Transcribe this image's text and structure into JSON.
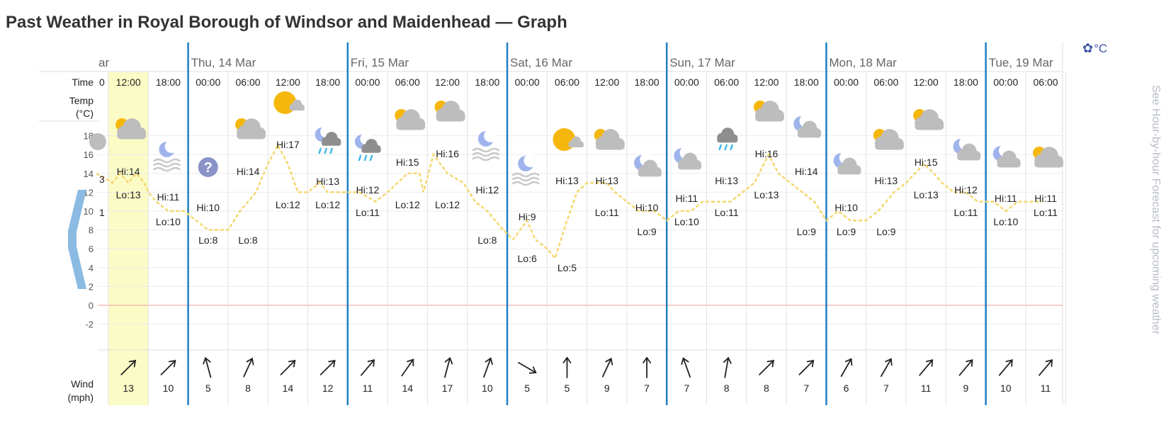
{
  "page": {
    "title": "Past Weather in Royal Borough of Windsor and Maidenhead — Graph",
    "units_label": "°C",
    "side_link": "See Hour-by-hour Forecast for upcoming weather",
    "icons": {
      "settings": "gear-icon",
      "back": "chevron-left-icon"
    },
    "colors": {
      "selected_column": "#fbfbc6",
      "day_divider": "#1f7fc4",
      "temp_line": "#f5d76e",
      "zero_line": "#f29b9b",
      "back_arrow": "#8bbbe2",
      "units": "#3d55a5"
    }
  },
  "row_labels": {
    "time": "Time",
    "temp": "Temp",
    "temp_unit": "(°C)",
    "wind": "Wind",
    "wind_unit": "(mph)"
  },
  "chart_data": {
    "type": "line",
    "partial_day_label": "ar",
    "days": [
      "Thu, 14 Mar",
      "Fri, 15 Mar",
      "Sat, 16 Mar",
      "Sun, 17 Mar",
      "Mon, 18 Mar",
      "Tue, 19 Mar"
    ],
    "partial_first_time": "0",
    "times": [
      "12:00",
      "18:00",
      "00:00",
      "06:00",
      "12:00",
      "18:00",
      "00:00",
      "06:00",
      "12:00",
      "18:00",
      "00:00",
      "06:00",
      "12:00",
      "18:00",
      "00:00",
      "06:00",
      "12:00",
      "18:00",
      "00:00",
      "06:00",
      "12:00",
      "18:00",
      "00:00",
      "06:00"
    ],
    "selected_time": "12:00",
    "y_ticks": [
      18,
      16,
      14,
      12,
      10,
      8,
      6,
      4,
      2,
      0,
      -2
    ],
    "ylim": [
      -2,
      18
    ],
    "partial_labels": {
      "hi": "3",
      "lo": "1"
    },
    "highs": [
      "Hi:14",
      "Hi:11",
      "Hi:10",
      "Hi:14",
      "Hi:17",
      "Hi:13",
      "Hi:12",
      "Hi:15",
      "Hi:16",
      "Hi:12",
      "Hi:9",
      "Hi:13",
      "Hi:13",
      "Hi:10",
      "Hi:11",
      "Hi:13",
      "Hi:16",
      "Hi:14",
      "Hi:10",
      "Hi:13",
      "Hi:15",
      "Hi:12",
      "Hi:11",
      "Hi:11"
    ],
    "lows": [
      "Lo:13",
      "Lo:10",
      "Lo:8",
      "Lo:8",
      "Lo:12",
      "Lo:12",
      "Lo:11",
      "Lo:12",
      "Lo:12",
      "Lo:8",
      "Lo:6",
      "Lo:5",
      "Lo:11",
      "Lo:9",
      "Lo:10",
      "Lo:11",
      "Lo:13",
      "Lo:9",
      "Lo:9",
      "Lo:9",
      "Lo:13",
      "Lo:11",
      "Lo:10",
      "Lo:11"
    ],
    "temp_line": [
      [
        -0.3,
        14
      ],
      [
        0.1,
        13
      ],
      [
        0.3,
        14
      ],
      [
        0.5,
        13
      ],
      [
        0.7,
        14
      ],
      [
        0.9,
        13
      ],
      [
        1,
        12
      ],
      [
        1.2,
        11
      ],
      [
        1.5,
        10
      ],
      [
        1.9,
        10
      ],
      [
        2.2,
        9
      ],
      [
        2.5,
        8
      ],
      [
        3,
        8
      ],
      [
        3.3,
        10
      ],
      [
        3.7,
        12
      ],
      [
        4,
        15
      ],
      [
        4.25,
        17
      ],
      [
        4.5,
        15
      ],
      [
        4.75,
        12
      ],
      [
        5,
        12
      ],
      [
        5.3,
        13
      ],
      [
        5.5,
        12
      ],
      [
        5.8,
        12
      ],
      [
        6,
        12
      ],
      [
        6.3,
        12
      ],
      [
        6.7,
        11
      ],
      [
        7,
        12
      ],
      [
        7.25,
        13
      ],
      [
        7.5,
        14
      ],
      [
        7.8,
        14
      ],
      [
        7.9,
        12
      ],
      [
        8.15,
        16
      ],
      [
        8.5,
        14
      ],
      [
        8.9,
        13
      ],
      [
        9.2,
        11
      ],
      [
        9.5,
        10
      ],
      [
        9.9,
        8
      ],
      [
        10.15,
        7
      ],
      [
        10.5,
        9
      ],
      [
        10.7,
        7
      ],
      [
        11,
        6
      ],
      [
        11.2,
        5
      ],
      [
        11.5,
        9
      ],
      [
        11.75,
        12
      ],
      [
        12,
        13
      ],
      [
        12.5,
        13
      ],
      [
        12.7,
        12
      ],
      [
        13,
        11
      ],
      [
        13.3,
        10
      ],
      [
        13.7,
        10
      ],
      [
        14,
        9
      ],
      [
        14.3,
        10
      ],
      [
        14.6,
        10
      ],
      [
        14.9,
        11
      ],
      [
        15.2,
        11
      ],
      [
        15.6,
        11
      ],
      [
        15.9,
        12
      ],
      [
        16.2,
        13
      ],
      [
        16.55,
        16
      ],
      [
        16.8,
        14
      ],
      [
        17.1,
        13
      ],
      [
        17.4,
        12
      ],
      [
        17.7,
        11
      ],
      [
        18,
        9
      ],
      [
        18.3,
        10
      ],
      [
        18.6,
        9
      ],
      [
        19,
        9
      ],
      [
        19.3,
        10
      ],
      [
        19.7,
        12
      ],
      [
        20,
        13
      ],
      [
        20.45,
        15
      ],
      [
        20.7,
        14
      ],
      [
        20.9,
        13
      ],
      [
        21.2,
        12
      ],
      [
        21.5,
        12
      ],
      [
        21.8,
        11
      ],
      [
        22.2,
        11
      ],
      [
        22.5,
        10
      ],
      [
        22.8,
        11
      ],
      [
        23.1,
        11
      ],
      [
        23.4,
        11
      ]
    ],
    "weather_icons": [
      "sun-cloud-icon",
      "moon-fog-icon",
      "unknown-icon",
      "sun-cloud-icon",
      "sun-icon",
      "moon-rain-icon",
      "moon-rain-icon",
      "sun-cloud-icon",
      "sun-cloud-icon",
      "moon-fog-icon",
      "moon-fog-icon",
      "sun-icon",
      "sun-cloud-icon",
      "moon-cloud-icon",
      "moon-cloud-icon",
      "rain-cloud-icon",
      "sun-cloud-icon",
      "moon-cloud-icon",
      "moon-cloud-icon",
      "sun-cloud-icon",
      "sun-cloud-icon",
      "moon-cloud-icon",
      "moon-cloud-icon",
      "sun-cloud-icon"
    ],
    "wind_speeds": [
      "13",
      "10",
      "5",
      "8",
      "14",
      "12",
      "11",
      "14",
      "17",
      "10",
      "5",
      "5",
      "9",
      "7",
      "7",
      "8",
      "8",
      "7",
      "6",
      "7",
      "11",
      "9",
      "10",
      "11"
    ],
    "wind_directions_deg": [
      45,
      45,
      -15,
      25,
      45,
      45,
      40,
      35,
      15,
      20,
      120,
      0,
      25,
      0,
      -20,
      10,
      45,
      45,
      30,
      30,
      40,
      40,
      40,
      40
    ]
  }
}
